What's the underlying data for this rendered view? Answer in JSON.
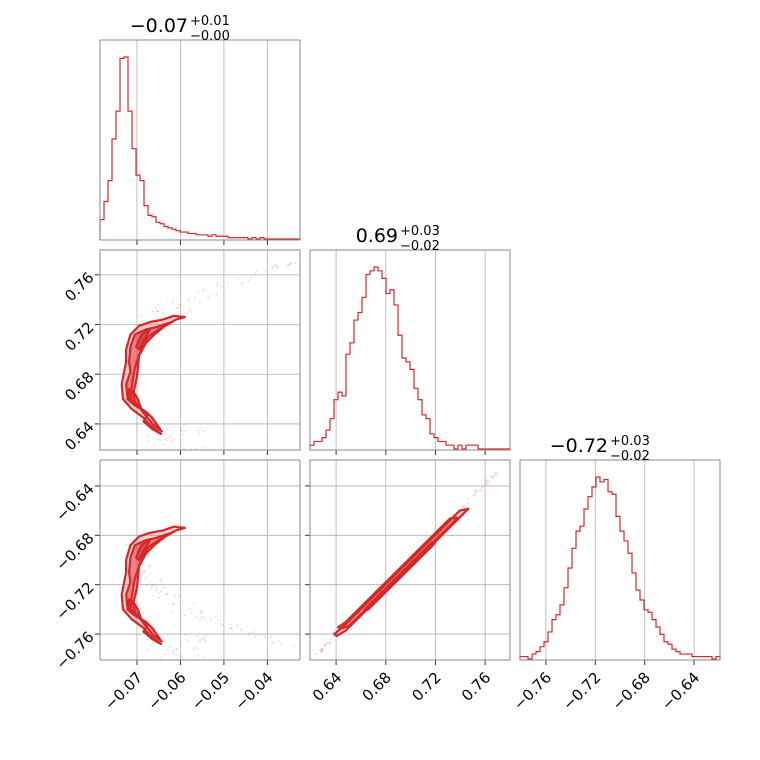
{
  "chart_data": {
    "type": "corner",
    "color": "#d62728",
    "grid": true,
    "parameters": [
      {
        "title_value": "−0.07",
        "title_plus": "+0.01",
        "title_minus": "−0.00",
        "range": [
          -0.0785,
          -0.0325
        ],
        "ticks": [
          -0.07,
          -0.06,
          -0.05,
          -0.04
        ],
        "tick_labels": [
          "−0.07",
          "−0.06",
          "−0.05",
          "−0.04"
        ]
      },
      {
        "title_value": "0.69",
        "title_plus": "+0.03",
        "title_minus": "−0.02",
        "range": [
          0.619,
          0.78
        ],
        "ticks": [
          0.64,
          0.68,
          0.72,
          0.76
        ],
        "tick_labels": [
          "0.64",
          "0.68",
          "0.72",
          "0.76"
        ]
      },
      {
        "title_value": "−0.72",
        "title_plus": "+0.03",
        "title_minus": "−0.02",
        "range": [
          -0.781,
          -0.619
        ],
        "ticks": [
          -0.76,
          -0.72,
          -0.68,
          -0.64
        ],
        "tick_labels": [
          "−0.76",
          "−0.72",
          "−0.68",
          "−0.64"
        ]
      }
    ],
    "histograms": [
      {
        "bin_start": -0.0785,
        "bin_width": 0.00092,
        "counts": [
          14,
          27,
          42,
          72,
          92,
          130,
          131,
          92,
          65,
          46,
          42,
          24,
          17,
          16,
          12,
          11,
          9,
          8,
          7,
          6,
          5,
          5,
          4,
          4,
          3,
          3,
          3,
          2,
          3,
          2,
          2,
          2,
          1,
          1,
          1,
          1,
          1,
          0,
          1,
          0,
          1,
          0,
          0,
          0,
          0,
          0,
          0,
          0,
          0,
          0
        ]
      },
      {
        "bin_start": 0.619,
        "bin_width": 0.00322,
        "counts": [
          1,
          2,
          2,
          3,
          5,
          8,
          13,
          15,
          14,
          25,
          28,
          34,
          36,
          40,
          46,
          47,
          48,
          47,
          45,
          41,
          42,
          38,
          30,
          24,
          23,
          21,
          16,
          13,
          9,
          8,
          4,
          3,
          2,
          2,
          1,
          1,
          0,
          1,
          0,
          1,
          1,
          1,
          0,
          0,
          0,
          0,
          0,
          0,
          0,
          0
        ]
      },
      {
        "bin_start": -0.781,
        "bin_width": 0.00324,
        "counts": [
          1,
          1,
          0,
          2,
          3,
          5,
          7,
          11,
          16,
          18,
          22,
          29,
          37,
          45,
          52,
          54,
          61,
          66,
          70,
          74,
          72,
          73,
          68,
          67,
          58,
          52,
          48,
          43,
          35,
          28,
          24,
          20,
          19,
          16,
          13,
          10,
          7,
          6,
          4,
          3,
          2,
          2,
          2,
          1,
          1,
          1,
          1,
          1,
          0,
          1
        ]
      }
    ],
    "pairs": [
      {
        "x_param": 0,
        "y_param": 1,
        "contour_fill": [
          [
            -0.0715,
            0.682
          ],
          [
            -0.0725,
            0.672
          ],
          [
            -0.0722,
            0.662
          ],
          [
            -0.0705,
            0.655
          ],
          [
            -0.068,
            0.65
          ],
          [
            -0.0665,
            0.645
          ],
          [
            -0.0655,
            0.64
          ],
          [
            -0.0643,
            0.634
          ],
          [
            -0.0665,
            0.64
          ],
          [
            -0.0683,
            0.648
          ],
          [
            -0.0705,
            0.658
          ],
          [
            -0.0708,
            0.665
          ],
          [
            -0.07,
            0.678
          ],
          [
            -0.0695,
            0.695
          ],
          [
            -0.068,
            0.705
          ],
          [
            -0.066,
            0.712
          ],
          [
            -0.0635,
            0.719
          ],
          [
            -0.062,
            0.722
          ],
          [
            -0.0655,
            0.718
          ],
          [
            -0.068,
            0.716
          ],
          [
            -0.0705,
            0.712
          ],
          [
            -0.0715,
            0.702
          ],
          [
            -0.0718,
            0.69
          ]
        ],
        "contour_outer": [
          [
            -0.0725,
            0.69
          ],
          [
            -0.0735,
            0.672
          ],
          [
            -0.0732,
            0.66
          ],
          [
            -0.0712,
            0.652
          ],
          [
            -0.0685,
            0.645
          ],
          [
            -0.067,
            0.639
          ],
          [
            -0.0645,
            0.632
          ],
          [
            -0.0665,
            0.636
          ],
          [
            -0.0685,
            0.642
          ],
          [
            -0.0675,
            0.648
          ],
          [
            -0.0695,
            0.653
          ],
          [
            -0.0715,
            0.66
          ],
          [
            -0.0712,
            0.67
          ],
          [
            -0.0705,
            0.685
          ],
          [
            -0.069,
            0.7
          ],
          [
            -0.0675,
            0.71
          ],
          [
            -0.065,
            0.716
          ],
          [
            -0.063,
            0.72
          ],
          [
            -0.061,
            0.724
          ],
          [
            -0.059,
            0.726
          ],
          [
            -0.0615,
            0.727
          ],
          [
            -0.064,
            0.724
          ],
          [
            -0.067,
            0.722
          ],
          [
            -0.0695,
            0.719
          ],
          [
            -0.0715,
            0.712
          ],
          [
            -0.0725,
            0.7
          ]
        ],
        "contour_inner": [
          [
            -0.0718,
            0.668
          ],
          [
            -0.0722,
            0.66
          ],
          [
            -0.0705,
            0.655
          ],
          [
            -0.069,
            0.652
          ],
          [
            -0.0698,
            0.66
          ],
          [
            -0.0708,
            0.666
          ]
        ],
        "contour_inner2": [
          [
            -0.0702,
            0.702
          ],
          [
            -0.069,
            0.712
          ],
          [
            -0.067,
            0.716
          ],
          [
            -0.0685,
            0.707
          ],
          [
            -0.0695,
            0.7
          ]
        ],
        "scatter_seed": 7
      },
      {
        "x_param": 0,
        "y_param": 2,
        "contour_fill": [
          [
            -0.0715,
            -0.718
          ],
          [
            -0.0725,
            -0.728
          ],
          [
            -0.0722,
            -0.738
          ],
          [
            -0.0705,
            -0.745
          ],
          [
            -0.068,
            -0.75
          ],
          [
            -0.0665,
            -0.755
          ],
          [
            -0.0655,
            -0.76
          ],
          [
            -0.0643,
            -0.766
          ],
          [
            -0.0665,
            -0.76
          ],
          [
            -0.0683,
            -0.752
          ],
          [
            -0.0705,
            -0.742
          ],
          [
            -0.0708,
            -0.735
          ],
          [
            -0.07,
            -0.722
          ],
          [
            -0.0695,
            -0.705
          ],
          [
            -0.068,
            -0.695
          ],
          [
            -0.066,
            -0.688
          ],
          [
            -0.0635,
            -0.681
          ],
          [
            -0.062,
            -0.678
          ],
          [
            -0.0655,
            -0.682
          ],
          [
            -0.068,
            -0.684
          ],
          [
            -0.0705,
            -0.688
          ],
          [
            -0.0715,
            -0.698
          ],
          [
            -0.0718,
            -0.71
          ]
        ],
        "contour_outer": [
          [
            -0.0725,
            -0.71
          ],
          [
            -0.0735,
            -0.728
          ],
          [
            -0.0732,
            -0.74
          ],
          [
            -0.0712,
            -0.748
          ],
          [
            -0.0685,
            -0.755
          ],
          [
            -0.067,
            -0.761
          ],
          [
            -0.0645,
            -0.768
          ],
          [
            -0.0665,
            -0.764
          ],
          [
            -0.0685,
            -0.758
          ],
          [
            -0.0675,
            -0.752
          ],
          [
            -0.0695,
            -0.747
          ],
          [
            -0.0715,
            -0.74
          ],
          [
            -0.0712,
            -0.73
          ],
          [
            -0.0705,
            -0.715
          ],
          [
            -0.069,
            -0.7
          ],
          [
            -0.0675,
            -0.69
          ],
          [
            -0.065,
            -0.684
          ],
          [
            -0.063,
            -0.68
          ],
          [
            -0.061,
            -0.676
          ],
          [
            -0.059,
            -0.674
          ],
          [
            -0.0615,
            -0.673
          ],
          [
            -0.064,
            -0.676
          ],
          [
            -0.067,
            -0.678
          ],
          [
            -0.0695,
            -0.681
          ],
          [
            -0.0715,
            -0.688
          ],
          [
            -0.0725,
            -0.7
          ]
        ],
        "contour_inner": [
          [
            -0.0718,
            -0.732
          ],
          [
            -0.0722,
            -0.74
          ],
          [
            -0.0705,
            -0.745
          ],
          [
            -0.069,
            -0.748
          ],
          [
            -0.0698,
            -0.74
          ],
          [
            -0.0708,
            -0.734
          ]
        ],
        "contour_inner2": [
          [
            -0.0702,
            -0.698
          ],
          [
            -0.069,
            -0.688
          ],
          [
            -0.067,
            -0.684
          ],
          [
            -0.0685,
            -0.693
          ],
          [
            -0.0695,
            -0.7
          ]
        ],
        "scatter_seed": 11
      },
      {
        "x_param": 1,
        "y_param": 2,
        "contour_fill": [
          [
            0.6445,
            -0.7555
          ],
          [
            0.6505,
            -0.7535
          ],
          [
            0.7345,
            -0.6695
          ],
          [
            0.7375,
            -0.6655
          ],
          [
            0.7315,
            -0.6665
          ],
          [
            0.6475,
            -0.7505
          ],
          [
            0.6415,
            -0.7545
          ]
        ],
        "contour_outer": [
          [
            0.6405,
            -0.7615
          ],
          [
            0.648,
            -0.757
          ],
          [
            0.742,
            -0.663
          ],
          [
            0.7465,
            -0.6585
          ],
          [
            0.7395,
            -0.66
          ],
          [
            0.645,
            -0.7545
          ],
          [
            0.6385,
            -0.76
          ]
        ],
        "contour_inner": [
          [
            0.662,
            -0.742
          ],
          [
            0.666,
            -0.74
          ],
          [
            0.718,
            -0.688
          ],
          [
            0.721,
            -0.684
          ],
          [
            0.717,
            -0.686
          ],
          [
            0.664,
            -0.739
          ]
        ],
        "contour_inner2": [],
        "scatter_seed": 3
      }
    ]
  }
}
